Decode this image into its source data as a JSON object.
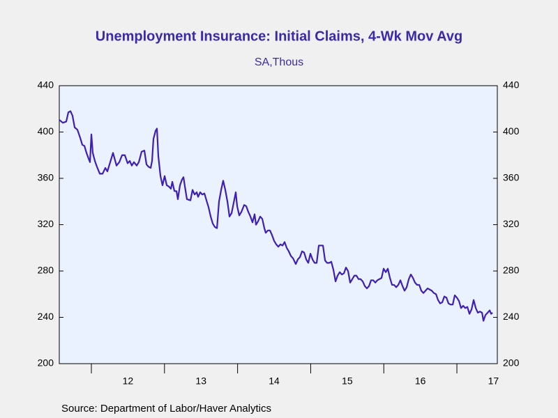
{
  "chart_data": {
    "type": "line",
    "title": "Unemployment Insurance: Initial Claims, 4-Wk Mov Avg",
    "subtitle": "SA,Thous",
    "source": "Source:  Department of Labor/Haver Analytics",
    "xlim": [
      2011.561,
      2017.553
    ],
    "xticks": [
      2012,
      2013,
      2014,
      2015,
      2016,
      2017
    ],
    "xtick_labels": [
      {
        "value": 2012.5,
        "label": "12"
      },
      {
        "value": 2013.5,
        "label": "13"
      },
      {
        "value": 2014.5,
        "label": "14"
      },
      {
        "value": 2015.5,
        "label": "15"
      },
      {
        "value": 2016.5,
        "label": "16"
      },
      {
        "value": 2017.5,
        "label": "17"
      }
    ],
    "ylim": [
      200,
      440
    ],
    "yticks": [
      200,
      240,
      280,
      320,
      360,
      400,
      440
    ],
    "grid": false,
    "x": [
      2011.561,
      2011.609,
      2011.656,
      2011.685,
      2011.714,
      2011.742,
      2011.771,
      2011.809,
      2011.847,
      2011.876,
      2011.905,
      2011.933,
      2011.962,
      2011.981,
      2012.0,
      2012.019,
      2012.048,
      2012.076,
      2012.115,
      2012.153,
      2012.191,
      2012.219,
      2012.248,
      2012.296,
      2012.344,
      2012.382,
      2012.42,
      2012.458,
      2012.496,
      2012.525,
      2012.553,
      2012.582,
      2012.62,
      2012.649,
      2012.687,
      2012.725,
      2012.754,
      2012.782,
      2012.811,
      2012.83,
      2012.849,
      2012.878,
      2012.897,
      2012.916,
      2012.945,
      2012.973,
      2013.002,
      2013.031,
      2013.059,
      2013.088,
      2013.107,
      2013.136,
      2013.164,
      2013.183,
      2013.212,
      2013.24,
      2013.26,
      2013.279,
      2013.307,
      2013.355,
      2013.384,
      2013.412,
      2013.441,
      2013.46,
      2013.489,
      2013.517,
      2013.546,
      2013.574,
      2013.603,
      2013.632,
      2013.66,
      2013.689,
      2013.718,
      2013.746,
      2013.775,
      2013.803,
      2013.832,
      2013.861,
      2013.889,
      2013.918,
      2013.947,
      2013.975,
      2013.994,
      2014.023,
      2014.052,
      2014.09,
      2014.118,
      2014.147,
      2014.176,
      2014.204,
      2014.233,
      2014.252,
      2014.281,
      2014.309,
      2014.338,
      2014.366,
      2014.385,
      2014.414,
      2014.443,
      2014.471,
      2014.5,
      2014.529,
      2014.557,
      2014.586,
      2014.615,
      2014.643,
      2014.672,
      2014.7,
      2014.729,
      2014.758,
      2014.796,
      2014.824,
      2014.853,
      2014.882,
      2014.91,
      2014.939,
      2014.967,
      2014.996,
      2015.025,
      2015.053,
      2015.082,
      2015.111,
      2015.139,
      2015.168,
      2015.197,
      2015.225,
      2015.254,
      2015.282,
      2015.311,
      2015.34,
      2015.368,
      2015.397,
      2015.426,
      2015.454,
      2015.483,
      2015.511,
      2015.54,
      2015.569,
      2015.597,
      2015.626,
      2015.655,
      2015.683,
      2015.712,
      2015.74,
      2015.769,
      2015.798,
      2015.826,
      2015.855,
      2015.884,
      2015.912,
      2015.941,
      2015.969,
      2015.998,
      2016.027,
      2016.055,
      2016.084,
      2016.113,
      2016.141,
      2016.17,
      2016.198,
      2016.227,
      2016.256,
      2016.284,
      2016.313,
      2016.342,
      2016.37,
      2016.399,
      2016.427,
      2016.456,
      2016.485,
      2016.513,
      2016.542,
      2016.571,
      2016.599,
      2016.628,
      2016.656,
      2016.685,
      2016.714,
      2016.742,
      2016.771,
      2016.8,
      2016.828,
      2016.857,
      2016.885,
      2016.914,
      2016.943,
      2016.971,
      2017.0,
      2017.029,
      2017.057,
      2017.086,
      2017.115,
      2017.143,
      2017.172,
      2017.201,
      2017.229,
      2017.258,
      2017.286,
      2017.315,
      2017.344,
      2017.363,
      2017.391,
      2017.42,
      2017.449,
      2017.468,
      2017.487
    ],
    "series": [
      {
        "name": "Initial Claims, 4-Wk Mov Avg",
        "color": "#3f1fb2",
        "values": [
          410.5,
          408,
          409,
          417,
          418,
          414,
          404,
          402,
          395,
          389,
          388,
          382,
          377,
          374,
          398,
          382,
          375,
          370,
          364,
          364,
          369,
          366,
          372,
          382,
          371,
          374,
          380,
          380,
          373,
          375,
          371,
          374,
          371,
          374,
          383,
          384,
          372,
          370,
          369,
          375,
          394,
          401,
          403,
          379,
          362,
          354,
          362,
          354,
          353,
          351,
          357,
          349,
          349,
          342,
          354,
          359,
          361,
          353,
          342,
          341,
          350,
          346,
          348,
          344,
          348,
          346,
          347,
          341,
          335,
          327,
          321,
          318,
          317,
          340,
          350,
          358,
          350,
          340,
          327,
          330,
          339,
          348,
          336,
          328,
          331,
          337,
          336,
          331,
          327,
          322,
          329,
          320,
          323,
          327,
          325,
          317,
          313,
          315,
          315,
          311,
          306,
          303,
          301,
          303,
          302,
          305,
          300,
          297,
          293,
          291,
          286,
          290,
          292,
          297,
          296,
          290,
          287,
          295,
          290,
          287,
          287,
          302,
          302,
          302,
          289,
          287,
          287,
          288,
          281,
          271,
          276,
          279,
          277,
          278,
          283,
          280,
          270,
          273,
          276,
          276,
          273,
          273,
          271,
          267,
          265,
          267,
          272,
          272,
          270,
          272,
          273,
          274,
          282,
          279,
          282,
          274,
          268,
          268,
          266,
          268,
          272,
          267,
          263,
          266,
          273,
          277,
          274,
          270,
          268,
          268,
          263,
          261,
          263,
          265,
          264,
          263,
          261,
          260,
          255,
          252,
          253,
          258,
          257,
          252,
          251,
          251,
          259,
          257,
          254,
          248,
          250,
          248,
          249,
          243,
          247,
          255,
          248,
          244,
          245,
          244,
          237,
          242,
          244,
          246,
          243,
          244
        ]
      }
    ]
  }
}
